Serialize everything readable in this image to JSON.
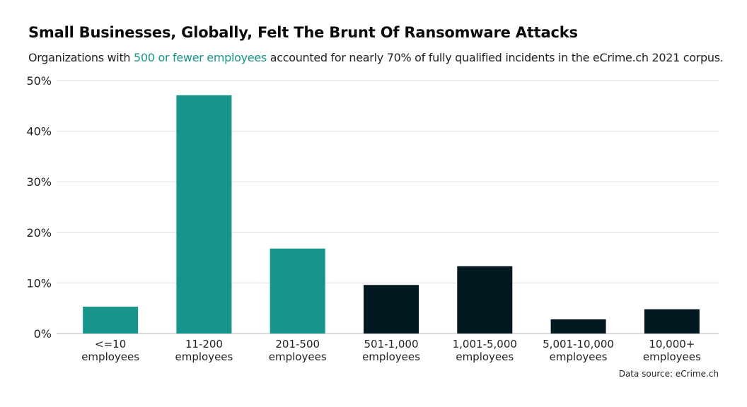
{
  "title": "Small Businesses, Globally, Felt The Brunt Of Ransomware Attacks",
  "subtitle": {
    "prefix": "Organizations with ",
    "highlight": "500 or fewer employees",
    "suffix": " accounted for nearly 70% of fully qualified incidents in the eCrime.ch 2021 corpus."
  },
  "source": "Data source: eCrime.ch",
  "colors": {
    "small": "#17958a",
    "large": "#031820",
    "grid": "#dcdcdc",
    "highlight": "#17958a"
  },
  "chart_data": {
    "type": "bar",
    "categories": [
      [
        "<=10",
        "employees"
      ],
      [
        "11-200",
        "employees"
      ],
      [
        "201-500",
        "employees"
      ],
      [
        "501-1,000",
        "employees"
      ],
      [
        "1,001-5,000",
        "employees"
      ],
      [
        "5,001-10,000",
        "employees"
      ],
      [
        "10,000+",
        "employees"
      ]
    ],
    "values": [
      5.3,
      47.1,
      16.8,
      9.6,
      13.3,
      2.8,
      4.8
    ],
    "groups": [
      "small",
      "small",
      "small",
      "large",
      "large",
      "large",
      "large"
    ],
    "ylim": [
      0,
      50
    ],
    "yticks": [
      0,
      10,
      20,
      30,
      40,
      50
    ],
    "ytick_labels": [
      "0%",
      "10%",
      "20%",
      "30%",
      "40%",
      "50%"
    ],
    "xlabel": "",
    "ylabel": "",
    "grid": true,
    "legend": "none"
  }
}
